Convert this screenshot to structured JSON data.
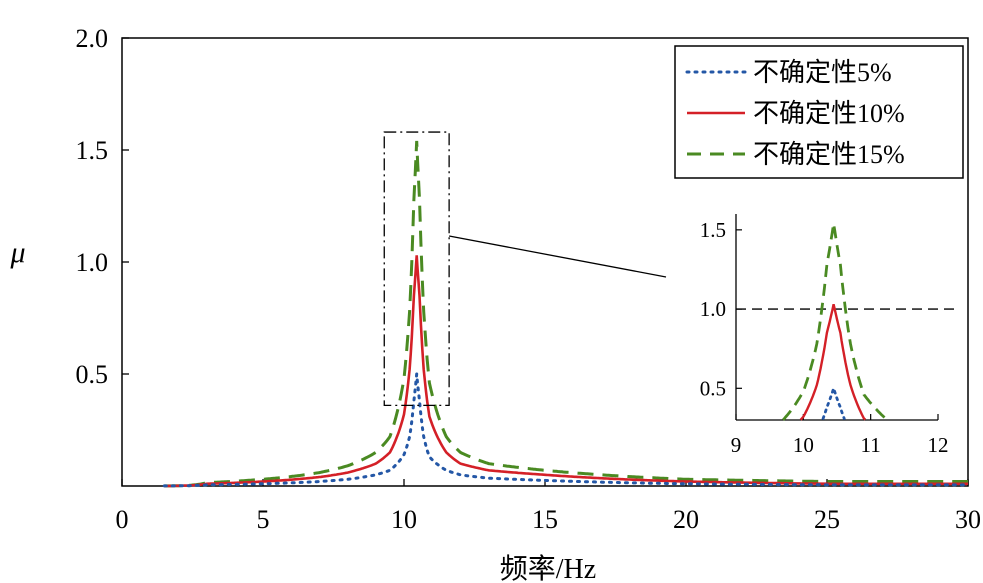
{
  "chart_data": {
    "type": "line",
    "title": "",
    "xlabel": "频率/Hz",
    "ylabel": "μ",
    "xlim": [
      0,
      30
    ],
    "ylim": [
      0,
      2.0
    ],
    "xticks": [
      "0",
      "5",
      "10",
      "15",
      "20",
      "25",
      "30"
    ],
    "yticks": [
      "0.5",
      "1.0",
      "1.5",
      "2.0"
    ],
    "grid": false,
    "legend_position": "top-right",
    "peak_frequency": 10.45,
    "series": [
      {
        "name": "不确定性5%",
        "color": "#2457a6",
        "style": "dotted",
        "x": [
          1,
          3,
          5,
          7,
          8,
          9,
          9.5,
          10,
          10.2,
          10.35,
          10.45,
          10.55,
          10.7,
          10.9,
          11.5,
          12,
          13,
          15,
          20,
          25,
          30
        ],
        "y": [
          0.0,
          0.005,
          0.01,
          0.02,
          0.03,
          0.05,
          0.07,
          0.14,
          0.22,
          0.38,
          0.5,
          0.38,
          0.22,
          0.13,
          0.07,
          0.05,
          0.035,
          0.025,
          0.01,
          0.005,
          0.005
        ]
      },
      {
        "name": "不确定性10%",
        "color": "#d42027",
        "style": "solid",
        "x": [
          1,
          3,
          5,
          7,
          8,
          9,
          9.5,
          10,
          10.2,
          10.35,
          10.45,
          10.55,
          10.7,
          10.9,
          11.5,
          12,
          13,
          15,
          20,
          25,
          30
        ],
        "y": [
          0.0,
          0.01,
          0.02,
          0.04,
          0.06,
          0.1,
          0.15,
          0.32,
          0.52,
          0.85,
          1.03,
          0.85,
          0.52,
          0.31,
          0.15,
          0.1,
          0.07,
          0.05,
          0.02,
          0.01,
          0.01
        ]
      },
      {
        "name": "不确定性15%",
        "color": "#4a8a22",
        "style": "dashed",
        "x": [
          1,
          3,
          5,
          7,
          8,
          9,
          9.5,
          10,
          10.2,
          10.35,
          10.45,
          10.55,
          10.7,
          10.9,
          11.5,
          12,
          13,
          15,
          20,
          25,
          30
        ],
        "y": [
          0.0,
          0.015,
          0.03,
          0.06,
          0.09,
          0.15,
          0.22,
          0.48,
          0.78,
          1.28,
          1.54,
          1.28,
          0.78,
          0.46,
          0.22,
          0.15,
          0.1,
          0.07,
          0.03,
          0.02,
          0.02
        ]
      }
    ],
    "inset": {
      "xlim": [
        9,
        12
      ],
      "ylim": [
        0.3,
        1.6
      ],
      "xticks": [
        "9",
        "10",
        "11",
        "12"
      ],
      "yticks": [
        "0.5",
        "1.0",
        "1.5"
      ],
      "reference_line": 1.0
    }
  }
}
